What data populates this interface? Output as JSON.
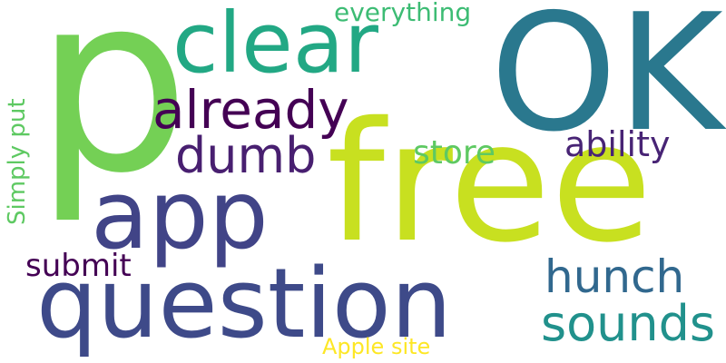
{
  "words": [
    {
      "id": "p",
      "text": "p",
      "color": "#74d055"
    },
    {
      "id": "ok",
      "text": "OK",
      "color": "#2a788e"
    },
    {
      "id": "clear",
      "text": "clear",
      "color": "#22a884"
    },
    {
      "id": "free",
      "text": "free",
      "color": "#c8e020"
    },
    {
      "id": "app",
      "text": "app",
      "color": "#414487"
    },
    {
      "id": "question",
      "text": "question",
      "color": "#3e4a89"
    },
    {
      "id": "already",
      "text": "already",
      "color": "#440154"
    },
    {
      "id": "dumb",
      "text": "dumb",
      "color": "#481f70"
    },
    {
      "id": "everything",
      "text": "everything",
      "color": "#3dbc74"
    },
    {
      "id": "store",
      "text": "store",
      "color": "#5ec962"
    },
    {
      "id": "ability",
      "text": "ability",
      "color": "#482475"
    },
    {
      "id": "hunch",
      "text": "hunch",
      "color": "#31688e"
    },
    {
      "id": "sounds",
      "text": "sounds",
      "color": "#21918c"
    },
    {
      "id": "submit",
      "text": "submit",
      "color": "#440154"
    },
    {
      "id": "simply_put",
      "text": "Simply put",
      "color": "#5ec962"
    },
    {
      "id": "apple_site",
      "text": "Apple site",
      "color": "#fde725"
    }
  ]
}
